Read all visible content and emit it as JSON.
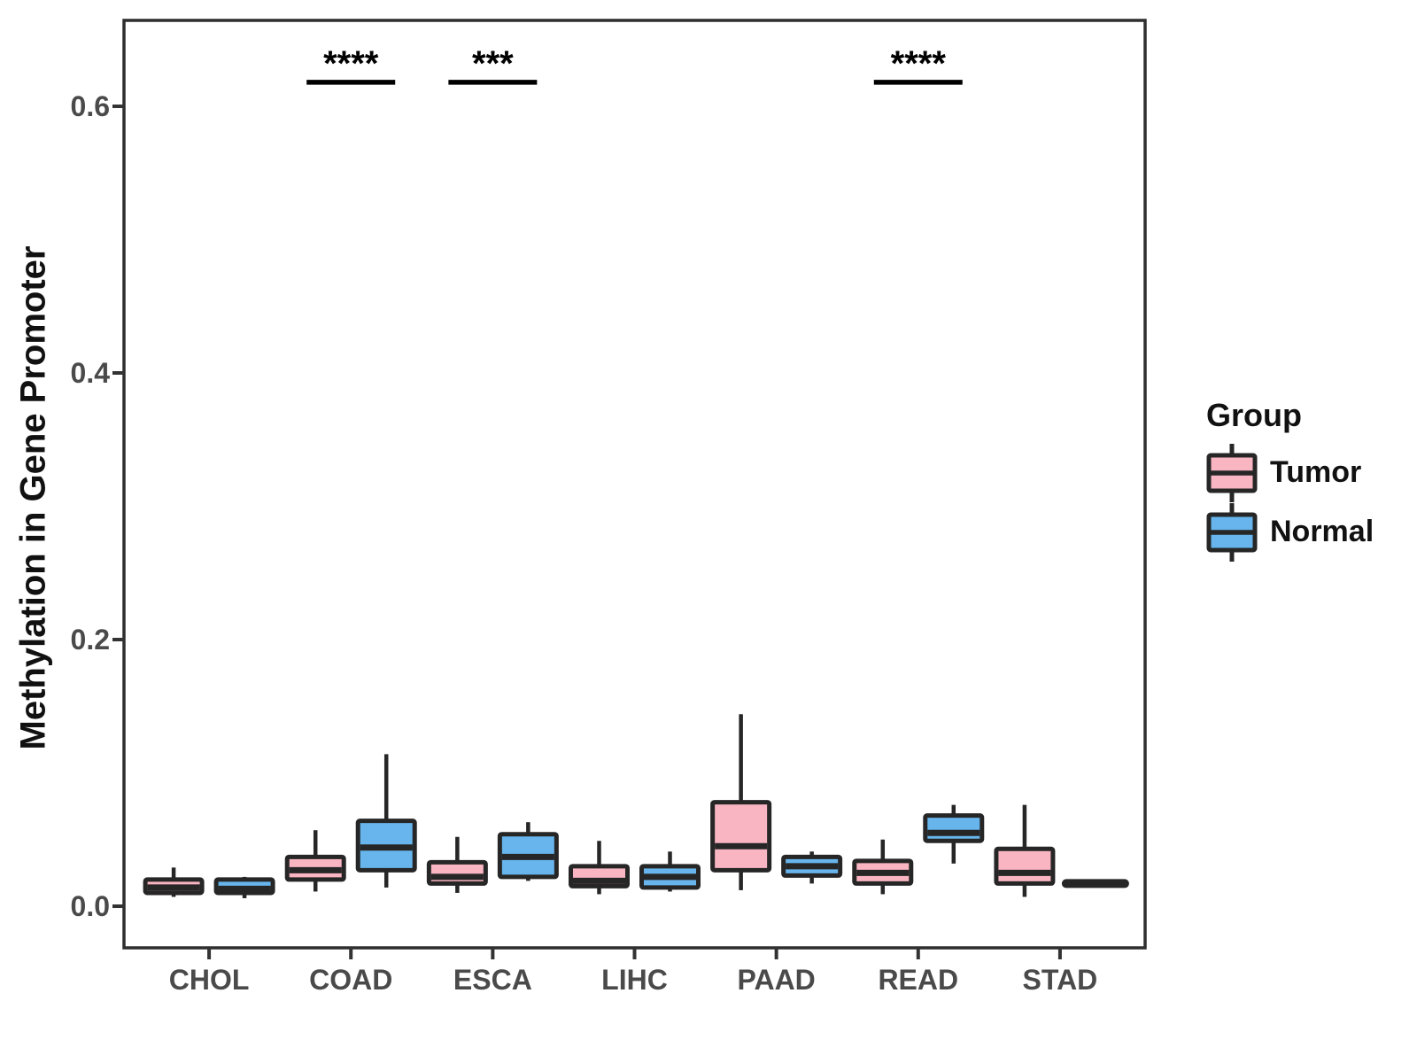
{
  "figure": {
    "background": "#FFFFFF",
    "ylabel": "Methylation in Gene Promoter",
    "legend": {
      "title": "Group",
      "items": [
        {
          "label": "Tumor",
          "color": "#F9B5C2"
        },
        {
          "label": "Normal",
          "color": "#67B5EC"
        }
      ]
    }
  },
  "chart_data": {
    "type": "boxplot",
    "title": "",
    "xlabel": "",
    "ylabel": "Methylation in Gene Promoter",
    "categories": [
      "CHOL",
      "COAD",
      "ESCA",
      "LIHC",
      "PAAD",
      "READ",
      "STAD"
    ],
    "groups": [
      "Tumor",
      "Normal"
    ],
    "colors": {
      "Tumor": "#F9B5C2",
      "Normal": "#67B5EC",
      "box_stroke": "#262626",
      "panel_border": "#2E2E2E",
      "tick_label": "#4A4A4A",
      "annotation": "#000000"
    },
    "ylim": [
      -0.031,
      0.664
    ],
    "yticks": [
      0.0,
      0.2,
      0.4,
      0.6
    ],
    "ytick_labels": [
      "0.0",
      "0.2",
      "0.4",
      "0.6"
    ],
    "grid": false,
    "legend_position": "right",
    "series": [
      {
        "name": "Tumor",
        "boxes": [
          {
            "category": "CHOL",
            "whisker_low": 0.007,
            "q1": 0.01,
            "median": 0.014,
            "q3": 0.02,
            "whisker_high": 0.029
          },
          {
            "category": "COAD",
            "whisker_low": 0.011,
            "q1": 0.02,
            "median": 0.027,
            "q3": 0.037,
            "whisker_high": 0.057
          },
          {
            "category": "ESCA",
            "whisker_low": 0.01,
            "q1": 0.017,
            "median": 0.022,
            "q3": 0.033,
            "whisker_high": 0.052
          },
          {
            "category": "LIHC",
            "whisker_low": 0.009,
            "q1": 0.015,
            "median": 0.019,
            "q3": 0.03,
            "whisker_high": 0.049
          },
          {
            "category": "PAAD",
            "whisker_low": 0.012,
            "q1": 0.027,
            "median": 0.045,
            "q3": 0.078,
            "whisker_high": 0.144
          },
          {
            "category": "READ",
            "whisker_low": 0.009,
            "q1": 0.017,
            "median": 0.025,
            "q3": 0.034,
            "whisker_high": 0.05
          },
          {
            "category": "STAD",
            "whisker_low": 0.007,
            "q1": 0.017,
            "median": 0.025,
            "q3": 0.043,
            "whisker_high": 0.076
          }
        ]
      },
      {
        "name": "Normal",
        "boxes": [
          {
            "category": "CHOL",
            "whisker_low": 0.006,
            "q1": 0.01,
            "median": 0.013,
            "q3": 0.02,
            "whisker_high": 0.022
          },
          {
            "category": "COAD",
            "whisker_low": 0.014,
            "q1": 0.027,
            "median": 0.044,
            "q3": 0.064,
            "whisker_high": 0.114
          },
          {
            "category": "ESCA",
            "whisker_low": 0.019,
            "q1": 0.022,
            "median": 0.037,
            "q3": 0.054,
            "whisker_high": 0.063
          },
          {
            "category": "LIHC",
            "whisker_low": 0.011,
            "q1": 0.014,
            "median": 0.022,
            "q3": 0.03,
            "whisker_high": 0.041
          },
          {
            "category": "PAAD",
            "whisker_low": 0.017,
            "q1": 0.023,
            "median": 0.03,
            "q3": 0.037,
            "whisker_high": 0.041
          },
          {
            "category": "READ",
            "whisker_low": 0.032,
            "q1": 0.049,
            "median": 0.055,
            "q3": 0.068,
            "whisker_high": 0.076
          },
          {
            "category": "STAD",
            "whisker_low": 0.016,
            "q1": 0.016,
            "median": 0.017,
            "q3": 0.018,
            "whisker_high": 0.018
          }
        ]
      }
    ],
    "annotations": [
      {
        "category": "COAD",
        "label": "****",
        "y": 0.618
      },
      {
        "category": "ESCA",
        "label": "***",
        "y": 0.618
      },
      {
        "category": "READ",
        "label": "****",
        "y": 0.618
      }
    ]
  }
}
